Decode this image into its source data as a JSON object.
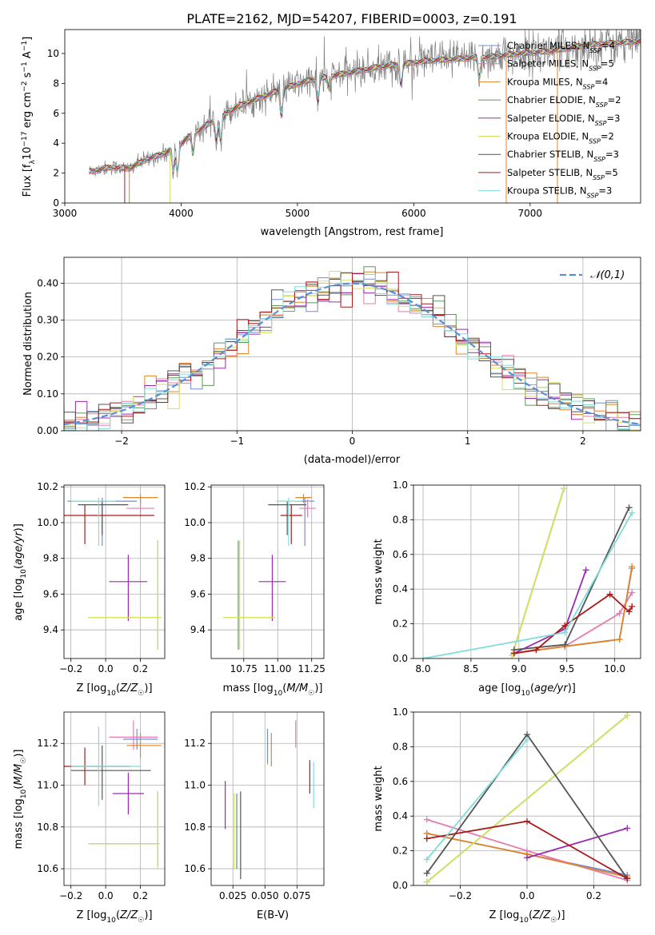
{
  "title": "PLATE=2162, MJD=54207, FIBERID=0003, z=0.191",
  "colors": {
    "Chabrier MILES": "#6e8fd6",
    "Salpeter MILES": "#e57bb0",
    "Kroupa MILES": "#e0852a",
    "Chabrier ELODIE": "#5a9a5a",
    "Salpeter ELODIE": "#9a2ab0",
    "Kroupa ELODIE": "#d8e060",
    "Chabrier STELIB": "#555555",
    "Salpeter STELIB": "#aa1a1a",
    "Kroupa STELIB": "#80dcdc",
    "data": "#808080",
    "normal": "#5b8ed8"
  },
  "chart_data": [
    {
      "type": "line",
      "name": "spectrum",
      "xlabel": "wavelength [Angstrom, rest frame]",
      "ylabel": "Flux [f_λ10^-17 erg cm^-2 s^-1 A^-1]",
      "xlim": [
        3000,
        7950
      ],
      "ylim": [
        0,
        11.6
      ],
      "xticks": [
        3000,
        4000,
        5000,
        6000,
        7000
      ],
      "yticks": [
        0,
        2,
        4,
        6,
        8,
        10
      ],
      "legend_placement": "upper right",
      "legend": [
        {
          "model": "Chabrier MILES",
          "nssp": "4"
        },
        {
          "model": "Salpeter MILES",
          "nssp": "5"
        },
        {
          "model": "Kroupa MILES",
          "nssp": "4"
        },
        {
          "model": "Chabrier ELODIE",
          "nssp": "2"
        },
        {
          "model": "Salpeter ELODIE",
          "nssp": "3"
        },
        {
          "model": "Kroupa ELODIE",
          "nssp": "2"
        },
        {
          "model": "Chabrier STELIB",
          "nssp": "3"
        },
        {
          "model": "Salpeter STELIB",
          "nssp": "5"
        },
        {
          "model": "Kroupa STELIB",
          "nssp": "3"
        }
      ],
      "continuum": [
        [
          3210,
          2.1
        ],
        [
          3400,
          2.4
        ],
        [
          3550,
          2.3
        ],
        [
          3700,
          2.9
        ],
        [
          3850,
          3.3
        ],
        [
          3950,
          3.7
        ],
        [
          4100,
          4.6
        ],
        [
          4300,
          5.6
        ],
        [
          4500,
          6.5
        ],
        [
          4700,
          7.1
        ],
        [
          4900,
          7.7
        ],
        [
          5100,
          8.2
        ],
        [
          5300,
          8.5
        ],
        [
          5500,
          8.8
        ],
        [
          5700,
          9.1
        ],
        [
          5900,
          9.3
        ],
        [
          6100,
          9.5
        ],
        [
          6300,
          9.6
        ],
        [
          6500,
          9.7
        ],
        [
          6700,
          9.8
        ],
        [
          6900,
          10.0
        ],
        [
          7100,
          10.1
        ],
        [
          7300,
          10.3
        ],
        [
          7500,
          10.6
        ],
        [
          7950,
          10.8
        ]
      ]
    },
    {
      "type": "histogram",
      "name": "residuals",
      "xlabel": "(data-model)/error",
      "ylabel": "Normed distribution",
      "xlim": [
        -2.5,
        2.5
      ],
      "ylim": [
        0,
        0.47
      ],
      "xticks": [
        -2,
        -1,
        0,
        1,
        2
      ],
      "yticks": [
        0,
        0.1,
        0.2,
        0.3,
        0.4
      ],
      "legend": "𝒩(0,1)",
      "legend_placement": "upper right",
      "bin_width": 0.1
    },
    {
      "type": "errorbar",
      "name": "age-metallicity",
      "xlabel": "Z [log10(Z/Z☉)]",
      "ylabel": "age  [log10(age/yr)]",
      "xlim": [
        -0.24,
        0.34
      ],
      "ylim": [
        9.24,
        10.21
      ],
      "xticks": [
        -0.2,
        0.0,
        0.2
      ],
      "yticks": [
        9.4,
        9.6,
        9.8,
        10.0,
        10.2
      ],
      "points": [
        {
          "model": "Chabrier MILES",
          "x": -0.02,
          "xerr": [
            0.2,
            0.2
          ],
          "y": 10.12,
          "yerr": [
            0.25,
            0.02
          ]
        },
        {
          "model": "Salpeter MILES",
          "x": 0.2,
          "xerr": [
            0.08,
            0.08
          ],
          "y": 10.08,
          "yerr": [
            0.05,
            0.05
          ]
        },
        {
          "model": "Kroupa MILES",
          "x": 0.2,
          "xerr": [
            0.1,
            0.1
          ],
          "y": 10.14,
          "yerr": [
            0.03,
            0.02
          ]
        },
        {
          "model": "Chabrier ELODIE",
          "x": 0.3,
          "xerr": [
            0.4,
            0.02
          ],
          "y": 9.47,
          "yerr": [
            0.18,
            0.43
          ]
        },
        {
          "model": "Salpeter ELODIE",
          "x": 0.13,
          "xerr": [
            0.11,
            0.11
          ],
          "y": 9.67,
          "yerr": [
            0.22,
            0.15
          ]
        },
        {
          "model": "Kroupa ELODIE",
          "x": 0.3,
          "xerr": [
            0.4,
            0.02
          ],
          "y": 9.47,
          "yerr": [
            0.18,
            0.43
          ]
        },
        {
          "model": "Chabrier STELIB",
          "x": -0.02,
          "xerr": [
            0.14,
            0.15
          ],
          "y": 10.1,
          "yerr": [
            0.17,
            0.02
          ]
        },
        {
          "model": "Salpeter STELIB",
          "x": -0.12,
          "xerr": [
            0.2,
            0.4
          ],
          "y": 10.04,
          "yerr": [
            0.16,
            0.06
          ]
        },
        {
          "model": "Kroupa STELIB",
          "x": -0.04,
          "xerr": [
            0.16,
            0.1
          ],
          "y": 10.12,
          "yerr": [
            0.25,
            0.02
          ]
        }
      ]
    },
    {
      "type": "errorbar",
      "name": "age-mass",
      "xlabel": "mass [log10(M/M☉)]",
      "ylabel": "",
      "xlim": [
        10.51,
        11.34
      ],
      "ylim": [
        9.24,
        10.21
      ],
      "xticks": [
        10.75,
        11.0,
        11.25
      ],
      "xticklabels": [
        "10.75",
        "11.00",
        "11.25"
      ],
      "yticks": [
        9.4,
        9.6,
        9.8,
        10.0,
        10.2
      ],
      "points": [
        {
          "model": "Chabrier MILES",
          "x": 11.2,
          "xerr": [
            0.07,
            0.07
          ],
          "y": 10.12,
          "yerr": [
            0.25,
            0.02
          ]
        },
        {
          "model": "Salpeter MILES",
          "x": 11.22,
          "xerr": [
            0.06,
            0.06
          ],
          "y": 10.08,
          "yerr": [
            0.05,
            0.05
          ]
        },
        {
          "model": "Kroupa MILES",
          "x": 11.19,
          "xerr": [
            0.06,
            0.06
          ],
          "y": 10.14,
          "yerr": [
            0.03,
            0.02
          ]
        },
        {
          "model": "Chabrier ELODIE",
          "x": 10.71,
          "xerr": [
            0.11,
            0.27
          ],
          "y": 9.47,
          "yerr": [
            0.18,
            0.43
          ]
        },
        {
          "model": "Salpeter ELODIE",
          "x": 10.96,
          "xerr": [
            0.1,
            0.1
          ],
          "y": 9.67,
          "yerr": [
            0.22,
            0.15
          ]
        },
        {
          "model": "Kroupa ELODIE",
          "x": 10.72,
          "xerr": [
            0.12,
            0.26
          ],
          "y": 9.47,
          "yerr": [
            0.18,
            0.43
          ]
        },
        {
          "model": "Chabrier STELIB",
          "x": 11.07,
          "xerr": [
            0.14,
            0.14
          ],
          "y": 10.1,
          "yerr": [
            0.17,
            0.02
          ]
        },
        {
          "model": "Salpeter STELIB",
          "x": 11.1,
          "xerr": [
            0.08,
            0.08
          ],
          "y": 10.04,
          "yerr": [
            0.16,
            0.06
          ]
        },
        {
          "model": "Kroupa STELIB",
          "x": 11.08,
          "xerr": [
            0.09,
            0.1
          ],
          "y": 10.12,
          "yerr": [
            0.25,
            0.02
          ]
        }
      ]
    },
    {
      "type": "line",
      "name": "mass weight vs age",
      "xlabel": "age  [log10(age/yr)]",
      "ylabel": "mass weight",
      "xlim": [
        7.9,
        10.27
      ],
      "ylim": [
        0,
        1.0
      ],
      "xticks": [
        8.0,
        8.5,
        9.0,
        9.5,
        10.0
      ],
      "yticks": [
        0,
        0.2,
        0.4,
        0.6,
        0.8,
        1.0
      ],
      "series": [
        {
          "model": "Chabrier MILES",
          "x": [
            8.95,
            9.48,
            10.05,
            10.18
          ],
          "y": [
            0.03,
            0.07,
            0.11,
            0.52
          ]
        },
        {
          "model": "Salpeter MILES",
          "x": [
            8.95,
            9.48,
            10.05,
            10.18
          ],
          "y": [
            0.03,
            0.07,
            0.26,
            0.38
          ]
        },
        {
          "model": "Kroupa MILES",
          "x": [
            8.95,
            9.48,
            10.05,
            10.18
          ],
          "y": [
            0.03,
            0.07,
            0.11,
            0.53
          ]
        },
        {
          "model": "Chabrier ELODIE",
          "x": [
            8.93,
            9.47
          ],
          "y": [
            0.02,
            0.98
          ]
        },
        {
          "model": "Salpeter ELODIE",
          "x": [
            8.95,
            9.48,
            9.7
          ],
          "y": [
            0.03,
            0.17,
            0.51
          ]
        },
        {
          "model": "Kroupa ELODIE",
          "x": [
            8.93,
            9.47
          ],
          "y": [
            0.02,
            0.98
          ]
        },
        {
          "model": "Chabrier STELIB",
          "x": [
            8.95,
            9.48,
            10.15
          ],
          "y": [
            0.05,
            0.08,
            0.87
          ]
        },
        {
          "model": "Salpeter STELIB",
          "x": [
            8.95,
            9.18,
            9.48,
            9.95,
            10.15,
            10.18
          ],
          "y": [
            0.03,
            0.05,
            0.19,
            0.37,
            0.27,
            0.3
          ]
        },
        {
          "model": "Kroupa STELIB",
          "x": [
            8.0,
            9.48,
            10.18
          ],
          "y": [
            0.0,
            0.15,
            0.84
          ]
        }
      ]
    },
    {
      "type": "errorbar",
      "name": "mass-metallicity",
      "xlabel": "Z [log10(Z/Z☉)]",
      "ylabel": "mass [log10(M/M☉)]",
      "xlim": [
        -0.24,
        0.34
      ],
      "ylim": [
        10.52,
        11.35
      ],
      "xticks": [
        -0.2,
        0.0,
        0.2
      ],
      "yticks": [
        10.6,
        10.8,
        11.0,
        11.2
      ],
      "points": [
        {
          "model": "Chabrier MILES",
          "x": 0.18,
          "xerr": [
            0.08,
            0.12
          ],
          "y": 11.22,
          "yerr": [
            0.05,
            0.05
          ]
        },
        {
          "model": "Salpeter MILES",
          "x": 0.16,
          "xerr": [
            0.14,
            0.14
          ],
          "y": 11.23,
          "yerr": [
            0.06,
            0.08
          ]
        },
        {
          "model": "Kroupa MILES",
          "x": 0.2,
          "xerr": [
            0.08,
            0.12
          ],
          "y": 11.19,
          "yerr": [
            0.06,
            0.06
          ]
        },
        {
          "model": "Chabrier ELODIE",
          "x": 0.3,
          "xerr": [
            0.4,
            0.01
          ],
          "y": 10.72,
          "yerr": [
            0.11,
            0.25
          ]
        },
        {
          "model": "Salpeter ELODIE",
          "x": 0.13,
          "xerr": [
            0.09,
            0.09
          ],
          "y": 10.96,
          "yerr": [
            0.1,
            0.1
          ]
        },
        {
          "model": "Kroupa ELODIE",
          "x": 0.3,
          "xerr": [
            0.4,
            0.01
          ],
          "y": 10.72,
          "yerr": [
            0.12,
            0.25
          ]
        },
        {
          "model": "Chabrier STELIB",
          "x": -0.02,
          "xerr": [
            0.18,
            0.28
          ],
          "y": 11.07,
          "yerr": [
            0.14,
            0.12
          ]
        },
        {
          "model": "Salpeter STELIB",
          "x": -0.12,
          "xerr": [
            0.14,
            0.26
          ],
          "y": 11.09,
          "yerr": [
            0.09,
            0.09
          ]
        },
        {
          "model": "Kroupa STELIB",
          "x": -0.04,
          "xerr": [
            0.16,
            0.24
          ],
          "y": 11.09,
          "yerr": [
            0.19,
            0.19
          ]
        }
      ]
    },
    {
      "type": "errorbar",
      "name": "mass-extinction",
      "xlabel": "E(B-V)",
      "ylabel": "",
      "xlim": [
        0.008,
        0.096
      ],
      "ylim": [
        10.52,
        11.35
      ],
      "xticks": [
        0.025,
        0.05,
        0.075
      ],
      "xticklabels": [
        "0.025",
        "0.050",
        "0.075"
      ],
      "yticks": [
        10.6,
        10.8,
        11.0,
        11.2
      ],
      "points": [
        {
          "model": "Chabrier MILES",
          "x": 0.052,
          "y": 11.18,
          "yerr": [
            0.08,
            0.09
          ]
        },
        {
          "model": "Salpeter MILES",
          "x": 0.074,
          "y": 11.24,
          "yerr": [
            0.06,
            0.07
          ]
        },
        {
          "model": "Kroupa MILES",
          "x": 0.055,
          "y": 11.18,
          "yerr": [
            0.09,
            0.07
          ]
        },
        {
          "model": "Chabrier ELODIE",
          "x": 0.028,
          "y": 10.75,
          "yerr": [
            0.15,
            0.21
          ]
        },
        {
          "model": "Salpeter ELODIE",
          "x": 0.019,
          "y": 10.91,
          "yerr": [
            0.12,
            0.11
          ]
        },
        {
          "model": "Kroupa ELODIE",
          "x": 0.026,
          "y": 10.75,
          "yerr": [
            0.15,
            0.21
          ]
        },
        {
          "model": "Chabrier STELIB",
          "x": 0.031,
          "y": 10.76,
          "yerr": [
            0.21,
            0.21
          ]
        },
        {
          "model": "Salpeter STELIB",
          "x": 0.085,
          "y": 11.04,
          "yerr": [
            0.08,
            0.08
          ]
        },
        {
          "model": "Kroupa STELIB",
          "x": 0.088,
          "y": 11.0,
          "yerr": [
            0.11,
            0.11
          ]
        }
      ]
    },
    {
      "type": "line",
      "name": "mass weight vs metallicity",
      "xlabel": "Z [log10(Z/Z☉)]",
      "ylabel": "mass weight",
      "xlim": [
        -0.34,
        0.34
      ],
      "ylim": [
        0,
        1.0
      ],
      "xticks": [
        -0.2,
        0.0,
        0.2
      ],
      "yticks": [
        0,
        0.2,
        0.4,
        0.6,
        0.8,
        1.0
      ],
      "series": [
        {
          "model": "Chabrier MILES",
          "x": [
            -0.3,
            0.0,
            0.3
          ],
          "y": [
            0.3,
            0.18,
            0.06
          ]
        },
        {
          "model": "Salpeter MILES",
          "x": [
            -0.3,
            0.0,
            0.3
          ],
          "y": [
            0.38,
            0.2,
            0.03
          ]
        },
        {
          "model": "Kroupa MILES",
          "x": [
            -0.3,
            0.0,
            0.3
          ],
          "y": [
            0.3,
            0.18,
            0.05
          ]
        },
        {
          "model": "Chabrier ELODIE",
          "x": [
            -0.3,
            0.3
          ],
          "y": [
            0.02,
            0.98
          ]
        },
        {
          "model": "Salpeter ELODIE",
          "x": [
            0.0,
            0.3
          ],
          "y": [
            0.16,
            0.33
          ]
        },
        {
          "model": "Kroupa ELODIE",
          "x": [
            -0.3,
            0.3
          ],
          "y": [
            0.02,
            0.98
          ]
        },
        {
          "model": "Chabrier STELIB",
          "x": [
            -0.3,
            0.0,
            0.3
          ],
          "y": [
            0.07,
            0.87,
            0.04
          ]
        },
        {
          "model": "Salpeter STELIB",
          "x": [
            -0.3,
            0.0,
            0.3
          ],
          "y": [
            0.27,
            0.37,
            0.04
          ]
        },
        {
          "model": "Kroupa STELIB",
          "x": [
            -0.3,
            0.0
          ],
          "y": [
            0.15,
            0.84
          ]
        }
      ]
    }
  ]
}
